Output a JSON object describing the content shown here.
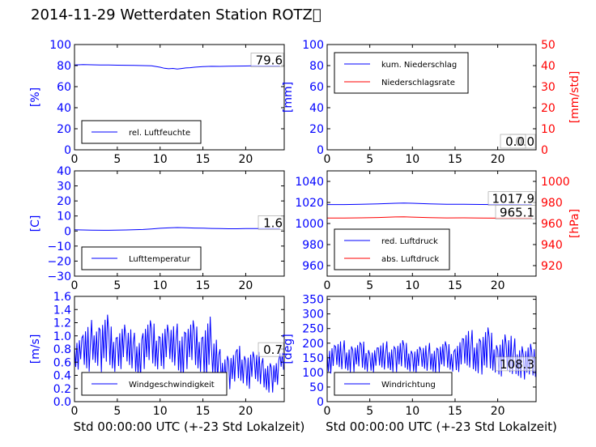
{
  "page": {
    "title": "2014-11-29 Wetterdaten Station ROTZ\u0000"
  },
  "colors": {
    "left_axis": "#0000ff",
    "right_axis": "#ff0000",
    "series_blue": "#0000ff",
    "series_red": "#ff0000"
  },
  "chart_data": [
    {
      "id": "humidity",
      "type": "line",
      "ylabel": "[%]",
      "xlim": [
        0,
        24.5
      ],
      "ylim": [
        0,
        100
      ],
      "xticks": [
        0,
        5,
        10,
        15,
        20
      ],
      "yticks": [
        0,
        20,
        40,
        60,
        80,
        100
      ],
      "grid": false,
      "legend": {
        "position": "lower-left",
        "entries": [
          "rel. Luftfeuchte"
        ]
      },
      "series": [
        {
          "name": "rel. Luftfeuchte",
          "color": "#0000ff",
          "x": [
            0,
            1,
            2,
            3,
            4,
            5,
            6,
            7,
            8,
            9,
            10,
            10.5,
            11,
            11.5,
            12,
            12.5,
            13,
            13.5,
            14,
            15,
            16,
            17,
            18,
            19,
            20,
            21,
            22,
            23,
            24
          ],
          "values": [
            80.5,
            81,
            80.8,
            80.5,
            80.6,
            80.4,
            80.3,
            80.2,
            80,
            79.8,
            78.5,
            77.5,
            77,
            77.3,
            76.8,
            77.2,
            77.8,
            78,
            78.5,
            79,
            79.3,
            79.2,
            79.4,
            79.5,
            79.6,
            79.8,
            79.5,
            79.6,
            79.6
          ]
        }
      ],
      "annotations": [
        {
          "text": "79.6",
          "x": 24,
          "y": 79.6
        }
      ],
      "xlabel": ""
    },
    {
      "id": "precipitation",
      "type": "line",
      "ylabel": "[mm]",
      "ylabel_right": "[mm/std]",
      "xlim": [
        0,
        24.5
      ],
      "ylim": [
        0,
        100
      ],
      "ylim_right": [
        0,
        50
      ],
      "xticks": [
        0,
        5,
        10,
        15,
        20
      ],
      "yticks": [
        0,
        20,
        40,
        60,
        80,
        100
      ],
      "yticks_right": [
        0,
        10,
        20,
        30,
        40,
        50
      ],
      "grid": false,
      "legend": {
        "position": "top-left",
        "entries": [
          "kum. Niederschlag",
          "Niederschlagsrate"
        ]
      },
      "series": [
        {
          "name": "kum. Niederschlag",
          "color": "#0000ff",
          "axis": "left",
          "x": [
            0,
            24
          ],
          "values": [
            0,
            0
          ]
        },
        {
          "name": "Niederschlagsrate",
          "color": "#ff0000",
          "axis": "right",
          "x": [
            0,
            24
          ],
          "values": [
            0,
            0
          ]
        }
      ],
      "annotations": [
        {
          "text": "0.0",
          "x": 24,
          "y": 0
        },
        {
          "text": "0.0",
          "x": 24,
          "y": 0
        }
      ],
      "xlabel": ""
    },
    {
      "id": "temperature",
      "type": "line",
      "ylabel": "[C]",
      "xlim": [
        0,
        24.5
      ],
      "ylim": [
        -30,
        40
      ],
      "xticks": [
        0,
        5,
        10,
        15,
        20
      ],
      "yticks": [
        -30,
        -20,
        -10,
        0,
        10,
        20,
        30,
        40
      ],
      "grid": false,
      "legend": {
        "position": "lower-left",
        "entries": [
          "Lufttemperatur"
        ]
      },
      "series": [
        {
          "name": "Lufttemperatur",
          "color": "#0000ff",
          "x": [
            0,
            2,
            4,
            6,
            8,
            9,
            10,
            11,
            12,
            13,
            14,
            15,
            16,
            17,
            18,
            19,
            20,
            21,
            22,
            23,
            24
          ],
          "values": [
            0.8,
            0.6,
            0.5,
            0.7,
            1.0,
            1.4,
            1.8,
            2.1,
            2.3,
            2.2,
            2.0,
            1.9,
            1.7,
            1.6,
            1.5,
            1.5,
            1.6,
            1.6,
            1.6,
            1.6,
            1.6
          ]
        }
      ],
      "annotations": [
        {
          "text": "1.6",
          "x": 24,
          "y": 1.6
        }
      ],
      "xlabel": ""
    },
    {
      "id": "pressure",
      "type": "line",
      "ylabel_right": "[hPa]",
      "xlim": [
        0,
        24.5
      ],
      "ylim": [
        950,
        1050
      ],
      "ylim_right": [
        910,
        1010
      ],
      "xticks": [
        0,
        5,
        10,
        15,
        20
      ],
      "yticks": [
        960,
        980,
        1000,
        1020,
        1040
      ],
      "yticks_right": [
        920,
        940,
        960,
        980,
        1000
      ],
      "grid": false,
      "legend": {
        "position": "lower-left",
        "entries": [
          "red. Luftdruck",
          "abs. Luftdruck"
        ]
      },
      "series": [
        {
          "name": "red. Luftdruck",
          "color": "#0000ff",
          "axis": "left",
          "x": [
            0,
            2,
            4,
            6,
            8,
            9,
            10,
            12,
            14,
            16,
            18,
            20,
            22,
            24
          ],
          "values": [
            1018,
            1018,
            1018.3,
            1018.6,
            1019.2,
            1019.4,
            1019.2,
            1018.6,
            1018.2,
            1018.3,
            1018.1,
            1018,
            1018,
            1017.9
          ]
        },
        {
          "name": "abs. Luftdruck",
          "color": "#ff0000",
          "axis": "right",
          "x": [
            0,
            2,
            4,
            6,
            8,
            9,
            10,
            12,
            14,
            16,
            18,
            20,
            22,
            24
          ],
          "values": [
            965.2,
            965.2,
            965.4,
            965.7,
            966.2,
            966.3,
            966.1,
            965.6,
            965.3,
            965.4,
            965.2,
            965.1,
            965.1,
            965.1
          ]
        }
      ],
      "annotations": [
        {
          "text": "1017.9",
          "x": 24,
          "y": 1017.9
        },
        {
          "text": "965.1",
          "x": 24,
          "y": 965.1
        }
      ],
      "xlabel": ""
    },
    {
      "id": "windspeed",
      "type": "line",
      "ylabel": "[m/s]",
      "xlim": [
        0,
        24.5
      ],
      "ylim": [
        0,
        1.6
      ],
      "xticks": [
        0,
        5,
        10,
        15,
        20
      ],
      "yticks": [
        0.0,
        0.2,
        0.4,
        0.6,
        0.8,
        1.0,
        1.2,
        1.4,
        1.6
      ],
      "grid": false,
      "legend": {
        "position": "lower-left",
        "entries": [
          "Windgeschwindigkeit"
        ]
      },
      "series": [
        {
          "name": "Windgeschwindigkeit",
          "color": "#0000ff",
          "x": [
            0,
            1,
            2,
            3,
            4,
            5,
            6,
            7,
            8,
            9,
            10,
            11,
            12,
            13,
            14,
            15,
            16,
            17,
            18,
            19,
            20,
            21,
            22,
            23,
            24
          ],
          "values": [
            0.75,
            0.7,
            0.85,
            0.8,
            0.75,
            0.8,
            0.75,
            0.7,
            0.8,
            0.75,
            0.8,
            0.78,
            0.75,
            0.8,
            0.75,
            0.7,
            0.55,
            0.45,
            0.45,
            0.5,
            0.5,
            0.45,
            0.4,
            0.4,
            0.7
          ],
          "min": [
            0.45,
            0.3,
            0.5,
            0.4,
            0.35,
            0.45,
            0.35,
            0.3,
            0.45,
            0.4,
            0.45,
            0.4,
            0.3,
            0.45,
            0.35,
            0.3,
            0.2,
            0.15,
            0.15,
            0.2,
            0.15,
            0.15,
            0.1,
            0.1,
            0.35
          ],
          "max": [
            1.05,
            1.2,
            1.3,
            1.4,
            1.2,
            1.3,
            1.15,
            1.1,
            1.3,
            1.25,
            1.3,
            1.2,
            1.25,
            1.3,
            1.2,
            1.5,
            1.0,
            0.85,
            0.8,
            0.9,
            0.85,
            0.8,
            0.7,
            0.65,
            0.75
          ]
        }
      ],
      "annotations": [
        {
          "text": "0.7",
          "x": 24,
          "y": 0.7
        }
      ],
      "xlabel": "Std 00:00:00 UTC (+-23 Std Lokalzeit)"
    },
    {
      "id": "winddir",
      "type": "line",
      "ylabel": "[deg]",
      "xlim": [
        0,
        24.5
      ],
      "ylim": [
        0,
        360
      ],
      "xticks": [
        0,
        5,
        10,
        15,
        20
      ],
      "yticks": [
        0,
        50,
        100,
        150,
        200,
        250,
        300,
        350
      ],
      "grid": false,
      "legend": {
        "position": "lower-left",
        "entries": [
          "Windrichtung"
        ]
      },
      "series": [
        {
          "name": "Windrichtung",
          "color": "#0000ff",
          "x": [
            0,
            1,
            2,
            3,
            4,
            5,
            6,
            7,
            8,
            9,
            10,
            11,
            12,
            13,
            14,
            15,
            16,
            17,
            18,
            19,
            20,
            21,
            22,
            23,
            24
          ],
          "values": [
            140,
            145,
            140,
            145,
            140,
            138,
            142,
            145,
            145,
            140,
            140,
            138,
            140,
            145,
            140,
            145,
            150,
            145,
            145,
            140,
            130,
            125,
            125,
            115,
            108
          ],
          "min": [
            90,
            90,
            95,
            95,
            90,
            95,
            90,
            95,
            95,
            90,
            90,
            85,
            90,
            95,
            90,
            95,
            95,
            90,
            85,
            85,
            80,
            75,
            75,
            70,
            70
          ],
          "max": [
            210,
            215,
            220,
            210,
            215,
            200,
            210,
            215,
            220,
            210,
            205,
            200,
            210,
            215,
            205,
            240,
            255,
            260,
            270,
            250,
            265,
            240,
            230,
            210,
            190
          ]
        }
      ],
      "annotations": [
        {
          "text": "108.3",
          "x": 24,
          "y": 108.3
        }
      ],
      "xlabel": "Std 00:00:00 UTC (+-23 Std Lokalzeit)"
    }
  ]
}
